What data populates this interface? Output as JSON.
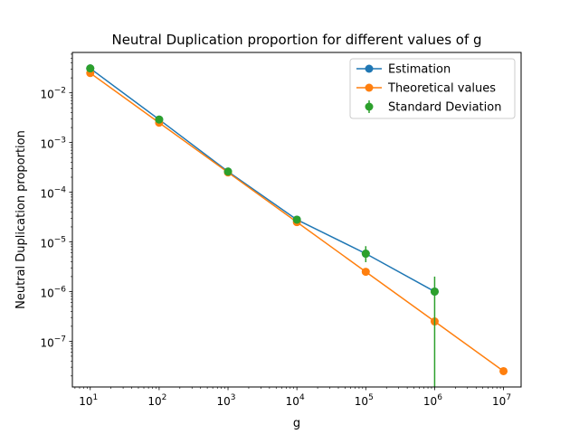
{
  "chart_data": {
    "type": "line",
    "title": "Neutral Duplication proportion for different values of g",
    "xlabel": "g",
    "ylabel": "Neutral Duplication proportion",
    "xscale": "log",
    "yscale": "log",
    "xlim": [
      5.5,
      18000000
    ],
    "ylim": [
      1.2e-08,
      0.065
    ],
    "grid": false,
    "legend_position": "top-right",
    "x_ticks": [
      {
        "value": 10,
        "base": "10",
        "exp": "1"
      },
      {
        "value": 100,
        "base": "10",
        "exp": "2"
      },
      {
        "value": 1000,
        "base": "10",
        "exp": "3"
      },
      {
        "value": 10000,
        "base": "10",
        "exp": "4"
      },
      {
        "value": 100000,
        "base": "10",
        "exp": "5"
      },
      {
        "value": 1000000,
        "base": "10",
        "exp": "6"
      },
      {
        "value": 10000000,
        "base": "10",
        "exp": "7"
      }
    ],
    "y_ticks": [
      {
        "value": 1e-07,
        "base": "10",
        "exp": "−7"
      },
      {
        "value": 1e-06,
        "base": "10",
        "exp": "−6"
      },
      {
        "value": 1e-05,
        "base": "10",
        "exp": "−5"
      },
      {
        "value": 0.0001,
        "base": "10",
        "exp": "−4"
      },
      {
        "value": 0.001,
        "base": "10",
        "exp": "−3"
      },
      {
        "value": 0.01,
        "base": "10",
        "exp": "−2"
      }
    ],
    "series": [
      {
        "name": "Estimation",
        "color": "#1f77b4",
        "kind": "line-marker",
        "x": [
          10,
          100,
          1000,
          10000,
          100000,
          1000000
        ],
        "y": [
          0.031,
          0.0029,
          0.00026,
          2.8e-05,
          5.8e-06,
          1e-06
        ]
      },
      {
        "name": "Theoretical values",
        "color": "#ff7f0e",
        "kind": "line-marker",
        "x": [
          10,
          100,
          1000,
          10000,
          100000,
          1000000,
          10000000
        ],
        "y": [
          0.025,
          0.0025,
          0.00025,
          2.5e-05,
          2.5e-06,
          2.5e-07,
          2.5e-08
        ]
      },
      {
        "name": "Standard Deviation",
        "color": "#2ca02c",
        "kind": "errorbar",
        "x": [
          10,
          100,
          1000,
          10000,
          100000,
          1000000
        ],
        "y": [
          0.031,
          0.0029,
          0.00026,
          2.8e-05,
          5.8e-06,
          1e-06
        ],
        "yerr_low": [
          0.029,
          0.0027,
          0.00024,
          2.6e-05,
          3.9e-06,
          1e-10
        ],
        "yerr_high": [
          0.033,
          0.0031,
          0.00028,
          3e-05,
          8.2e-06,
          2e-06
        ]
      }
    ]
  }
}
